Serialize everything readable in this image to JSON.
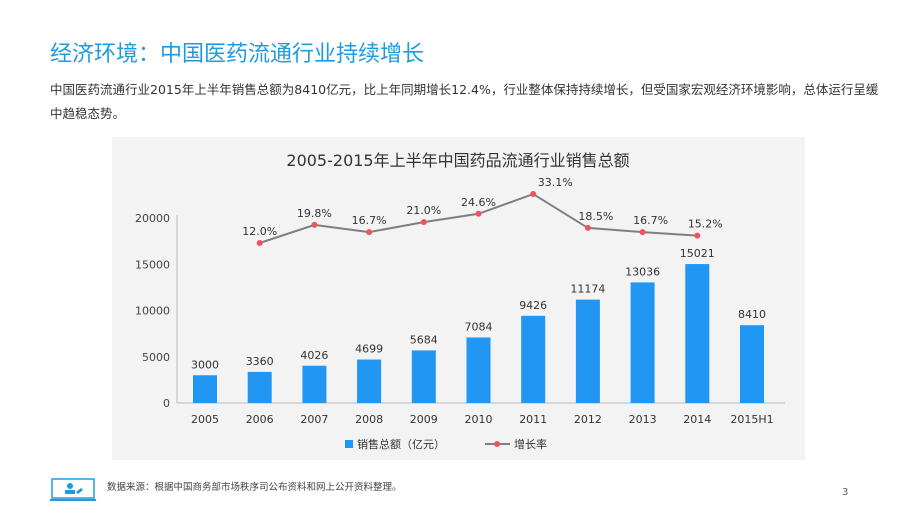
{
  "title": "经济环境：中国医药流通行业持续增长",
  "description": "中国医药流通行业2015年上半年销售总额为8410亿元，比上年同期增长12.4%，行业整体保持持续增长，但受国家宏观经济环境影响，总体运行呈缓中趋稳态势。",
  "source": "数据来源：根据中国商务部市场秩序司公布资料和网上公开资料整理。",
  "page_number": "3",
  "colors": {
    "title": "#1e9be0",
    "bar": "#2196f3",
    "line": "#7f7f7f",
    "marker": "#f0545a",
    "panel": "#f3f3f3"
  },
  "chart_data": {
    "type": "bar+line",
    "title": "2005-2015年上半年中国药品流通行业销售总额",
    "categories": [
      "2005",
      "2006",
      "2007",
      "2008",
      "2009",
      "2010",
      "2011",
      "2012",
      "2013",
      "2014",
      "2015H1"
    ],
    "ylim": [
      0,
      20000
    ],
    "yticks": [
      "0",
      "5000",
      "10000",
      "15000",
      "20000"
    ],
    "grid": false,
    "legend_position": "bottom",
    "series": [
      {
        "name": "销售总额（亿元）",
        "type": "bar",
        "values": [
          3000,
          3360,
          4026,
          4699,
          5684,
          7084,
          9426,
          11174,
          13036,
          15021,
          8410
        ],
        "labels": [
          "3000",
          "3360",
          "4026",
          "4699",
          "5684",
          "7084",
          "9426",
          "11174",
          "13036",
          "15021",
          "8410"
        ]
      },
      {
        "name": "增长率",
        "type": "line",
        "values": [
          null,
          12.0,
          19.8,
          16.7,
          21.0,
          24.6,
          33.1,
          18.5,
          16.7,
          15.2,
          null
        ],
        "labels": [
          "",
          "12.0%",
          "19.8%",
          "16.7%",
          "21.0%",
          "24.6%",
          "33.1%",
          "18.5%",
          "16.7%",
          "15.2%",
          ""
        ]
      }
    ]
  }
}
